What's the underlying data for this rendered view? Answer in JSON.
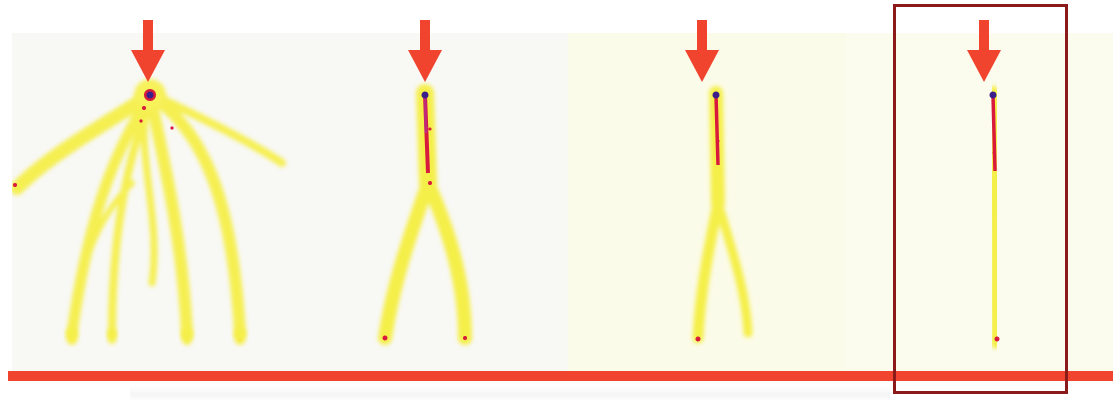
{
  "figure": {
    "panels": [
      {
        "id": "panel-1",
        "pattern": "multi-branch"
      },
      {
        "id": "panel-2",
        "pattern": "two-branch"
      },
      {
        "id": "panel-3",
        "pattern": "two-branch-narrow"
      },
      {
        "id": "panel-4",
        "pattern": "single-stem",
        "highlighted": true
      }
    ],
    "arrow_icon": "down-arrow-icon",
    "colors": {
      "arrow": "#f0442e",
      "baseline": "#f0442e",
      "highlight_box": "#8b1a1a",
      "plume": "#f5f04a",
      "core": "#d81b3c",
      "tip": "#3a1e8a"
    }
  }
}
